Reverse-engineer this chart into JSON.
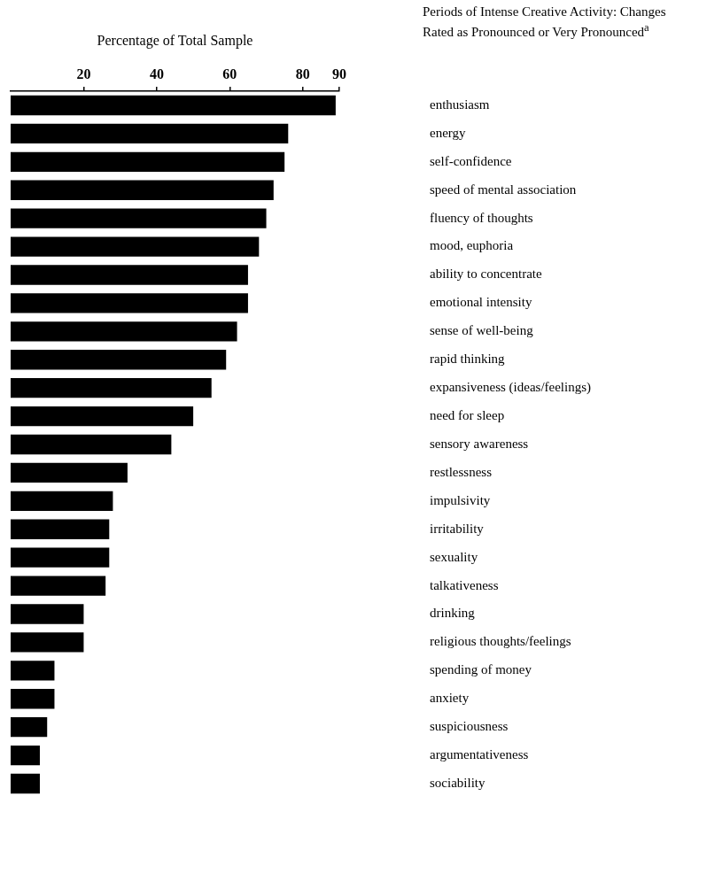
{
  "chart_data": {
    "type": "bar",
    "orientation": "horizontal",
    "title": "Periods of Intense Creative Activity: Changes Rated as Pronounced or Very Pronounced$^{a}$",
    "xlabel": "Percentage of Total Sample",
    "categories": [
      "enthusiasm",
      "energy",
      "self-confidence",
      "speed of mental association",
      "fluency of thoughts",
      "mood, euphoria",
      "ability to concentrate",
      "emotional intensity",
      "sense of well-being",
      "rapid thinking",
      "expansiveness (ideas/feelings)",
      "need for sleep",
      "sensory awareness",
      "restlessness",
      "impulsivity",
      "irritability",
      "sexuality",
      "talkativeness",
      "drinking",
      "religious thoughts/feelings",
      "spending of money",
      "anxiety",
      "suspiciousness",
      "argumentativeness",
      "sociability"
    ],
    "values": [
      89,
      76,
      75,
      72,
      70,
      68,
      65,
      65,
      62,
      59,
      55,
      50,
      44,
      32,
      28,
      27,
      27,
      26,
      20,
      20,
      12,
      12,
      10,
      8,
      8
    ],
    "color": "#000000",
    "xlim": [
      0,
      90
    ],
    "xticks": [
      20,
      40,
      60,
      80,
      90
    ],
    "grid": false,
    "legend": false
  }
}
